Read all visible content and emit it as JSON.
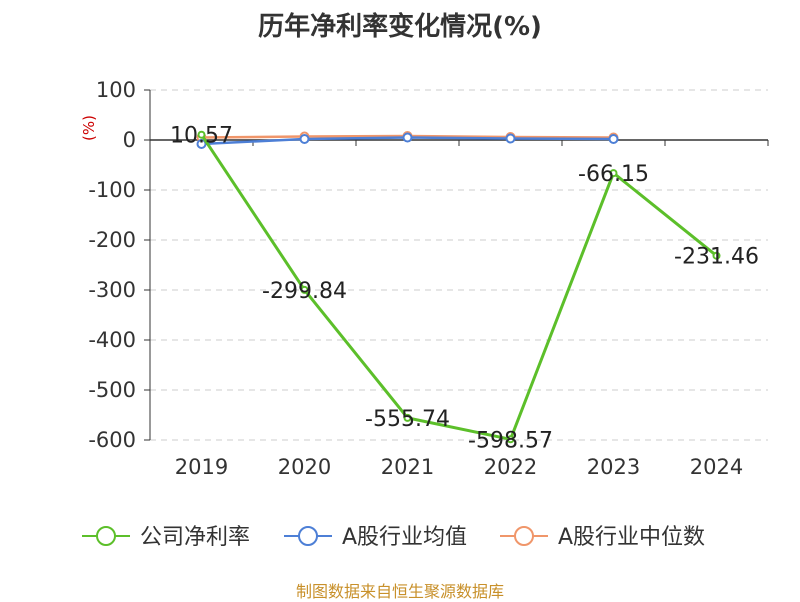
{
  "chart_data": {
    "type": "line",
    "title": "历年净利率变化情况(%)",
    "ylabel": "(%)",
    "xlabel": "",
    "categories": [
      "2019",
      "2020",
      "2021",
      "2022",
      "2023",
      "2024"
    ],
    "yticks": [
      100,
      0,
      -100,
      -200,
      -300,
      -400,
      -500,
      -600
    ],
    "ylim": [
      -600,
      100
    ],
    "grid": true,
    "legend_position": "bottom",
    "series": [
      {
        "name": "公司净利率",
        "color": "#5cbf2a",
        "values": [
          10.57,
          -299.84,
          -555.74,
          -598.57,
          -66.15,
          -231.46
        ],
        "labels": [
          "10.57",
          "-299.84",
          "-555.74",
          "-598.57",
          "-66.15",
          "-231.46"
        ]
      },
      {
        "name": "A股行业均值",
        "color": "#4d7fd6",
        "values": [
          -8,
          2,
          5,
          3,
          2,
          null
        ]
      },
      {
        "name": "A股行业中位数",
        "color": "#f0966a",
        "values": [
          5,
          7,
          8,
          6,
          5,
          null
        ]
      }
    ]
  },
  "source": "制图数据来自恒生聚源数据库"
}
